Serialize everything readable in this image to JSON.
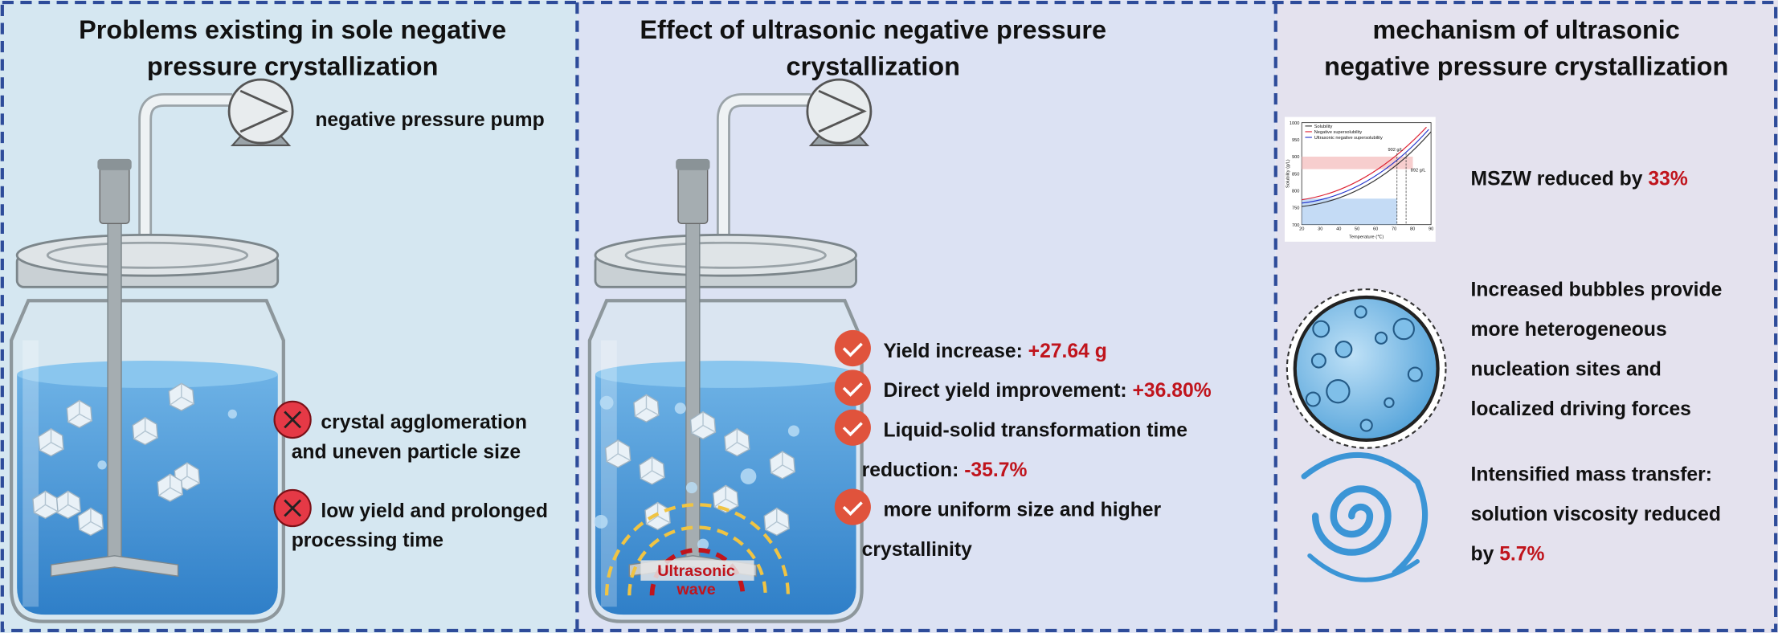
{
  "panels": [
    {
      "title": [
        "Problems existing in sole negative",
        "pressure crystallization"
      ],
      "pump_label": "negative pressure pump",
      "items": [
        {
          "lines": [
            "crystal agglomeration",
            "and uneven particle size"
          ]
        },
        {
          "lines": [
            "low yield and prolonged",
            "processing time"
          ]
        }
      ]
    },
    {
      "title": [
        "Effect of ultrasonic negative pressure",
        "crystallization"
      ],
      "wave_label": [
        "Ultrasonic",
        "wave"
      ],
      "items": [
        {
          "text": "Yield increase: ",
          "highlight": "+27.64 g"
        },
        {
          "text": "Direct yield improvement: ",
          "highlight": "+36.80%"
        },
        {
          "text": "Liquid-solid transformation time",
          "text2": "reduction: ",
          "highlight": "-35.7%"
        },
        {
          "text": "more uniform size and higher",
          "text2": "crystallinity"
        }
      ]
    },
    {
      "title": [
        "mechanism of ultrasonic",
        "negative pressure crystallization"
      ],
      "mini_chart": {
        "legend": [
          "Solubility",
          "Negative supersolubility",
          "Ultrasonic negative supersolubility"
        ],
        "x_label": "Temperature (℃)",
        "y_label": "Solubility (g/L)",
        "xticks": [
          20,
          30,
          40,
          50,
          60,
          70,
          80,
          90
        ],
        "yticks": [
          700,
          750,
          800,
          850,
          900,
          950,
          1000
        ],
        "annotations": [
          "902 g/L",
          "892 g/L"
        ]
      },
      "items": [
        {
          "lines": [
            "MSZW reduced by "
          ],
          "highlight": "33%"
        },
        {
          "lines": [
            "Increased bubbles provide",
            "more heterogeneous",
            "nucleation sites and",
            "localized driving forces"
          ]
        },
        {
          "lines": [
            "Intensified mass transfer:",
            "solution viscosity reduced",
            "by "
          ],
          "highlight": "5.7%"
        }
      ]
    }
  ]
}
